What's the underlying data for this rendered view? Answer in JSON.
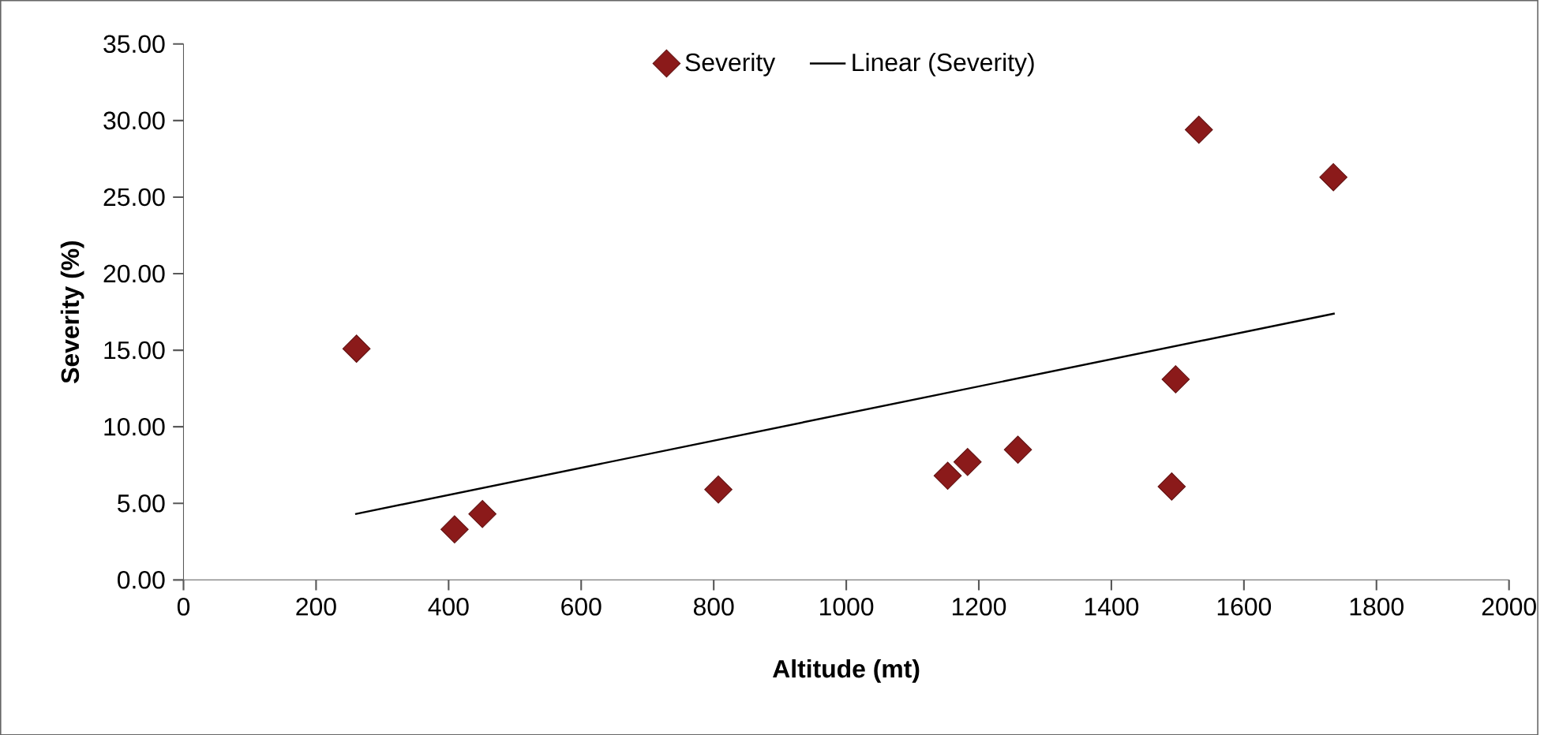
{
  "chart_data": {
    "type": "scatter",
    "xlabel": "Altitude (mt)",
    "ylabel": "Severity (%)",
    "xlim": [
      0,
      2000
    ],
    "xticks": [
      0,
      200,
      400,
      600,
      800,
      1000,
      1200,
      1400,
      1600,
      1800,
      2000
    ],
    "ylim": [
      0,
      35
    ],
    "yticks": [
      {
        "value": 0,
        "label": "0.00"
      },
      {
        "value": 5,
        "label": "5.00"
      },
      {
        "value": 10,
        "label": "10.00"
      },
      {
        "value": 15,
        "label": "15.00"
      },
      {
        "value": 20,
        "label": "20.00"
      },
      {
        "value": 25,
        "label": "25.00"
      },
      {
        "value": 30,
        "label": "30.00"
      },
      {
        "value": 35,
        "label": "35.00"
      }
    ],
    "legend": "top",
    "series": [
      {
        "name": "Severity",
        "color": "#8b1a1a",
        "marker": "diamond",
        "x": [
          261,
          409,
          451,
          807,
          1153,
          1183,
          1259,
          1491,
          1497,
          1532,
          1735
        ],
        "values": [
          15.1,
          3.3,
          4.3,
          5.9,
          6.8,
          7.7,
          8.5,
          6.1,
          13.1,
          29.4,
          26.3
        ]
      },
      {
        "name": "Linear (Severity)",
        "type": "line",
        "color": "#000000",
        "marker": "none",
        "x": [
          259,
          1737
        ],
        "values": [
          4.3,
          17.4
        ]
      }
    ]
  }
}
